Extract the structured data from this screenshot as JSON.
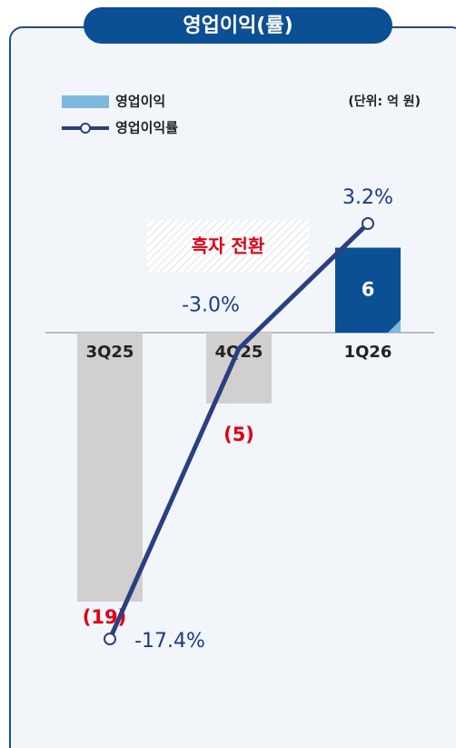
{
  "chart_data": {
    "type": "bar-line",
    "title": "영업이익(률)",
    "unit_label": "(단위: 억 원)",
    "annotation": "흑자 전환",
    "categories": [
      "3Q25",
      "4Q25",
      "1Q26"
    ],
    "series": [
      {
        "name": "영업이익",
        "type": "bar",
        "color": "#7cb8e0",
        "colors": [
          "#d1cfd0",
          "#d1cfd0",
          "#0b4f94"
        ],
        "values": [
          -19,
          -5,
          6
        ],
        "value_labels": [
          "(19)",
          "(5)",
          "6"
        ]
      },
      {
        "name": "영업이익률",
        "type": "line",
        "color": "#2b3f80",
        "values": [
          -17.4,
          -3.0,
          3.2
        ],
        "value_labels": [
          "-17.4%",
          "-3.0%",
          "3.2%"
        ]
      }
    ]
  }
}
